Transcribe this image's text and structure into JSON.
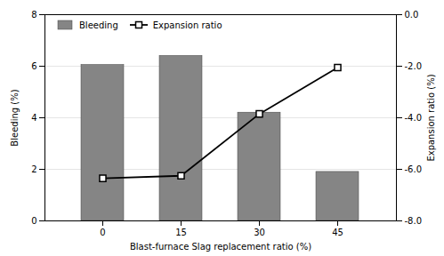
{
  "chart_data": {
    "type": "bar",
    "categories": [
      "0",
      "15",
      "30",
      "45"
    ],
    "xlabel": "Blast-furnace Slag replacement ratio (%)",
    "ylabel": "Bleeding (%)",
    "y2label": "Expansion ratio (%)",
    "ylim": [
      0,
      8
    ],
    "yticks": [
      0,
      2,
      4,
      6,
      8
    ],
    "y2lim": [
      -8.0,
      0.0
    ],
    "y2ticks": [
      {
        "value": -8.0,
        "label": "-8.0"
      },
      {
        "value": -6.0,
        "label": "-6.0"
      },
      {
        "value": -4.0,
        "label": "-4.0"
      },
      {
        "value": -2.0,
        "label": "-2.0"
      },
      {
        "value": 0.0,
        "label": "0.0"
      }
    ],
    "grid": true,
    "legend": "upper left",
    "series": [
      {
        "name": "Bleeding",
        "type": "bar",
        "color": "#858585",
        "values": [
          6.05,
          6.4,
          4.2,
          1.9
        ]
      },
      {
        "name": "Expansion ratio",
        "type": "line",
        "color": "#000000",
        "marker": "square",
        "axis": "y2",
        "values": [
          -6.35,
          -6.25,
          -3.85,
          -2.05
        ]
      }
    ]
  }
}
